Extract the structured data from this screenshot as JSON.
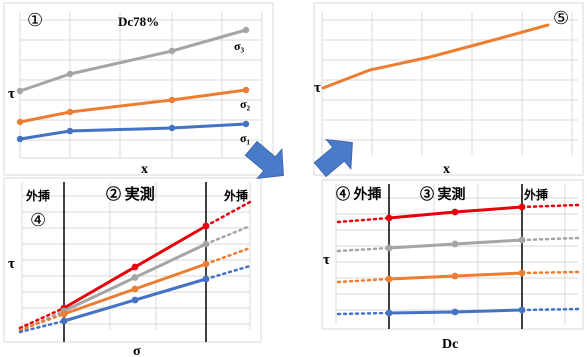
{
  "colors": {
    "red": "#E8000B",
    "gray": "#A5A5A5",
    "orange": "#ED7D31",
    "blue": "#4472C4",
    "arrow": "#4A7BC8",
    "grid": "#D9D9D9",
    "divider": "#000000"
  },
  "panel1": {
    "number": "①",
    "title": "Dc78%",
    "ylabel": "τ",
    "xlabel": "x",
    "series_labels": [
      "σ₃",
      "σ₂",
      "σ₁"
    ]
  },
  "panel5": {
    "number": "⑤",
    "ylabel": "τ",
    "xlabel": "x"
  },
  "panel2": {
    "region_left": "外挿",
    "region_left_number": "④",
    "region_mid": "② 実測",
    "region_right": "外挿",
    "ylabel": "τ",
    "xlabel": "σ"
  },
  "panel4": {
    "region_left": "④ 外挿",
    "region_mid": "③ 実測",
    "region_right": "外挿",
    "ylabel": "τ",
    "xlabel": "Dc"
  },
  "arrows": [
    "arrow-down-right",
    "arrow-up-right"
  ]
}
